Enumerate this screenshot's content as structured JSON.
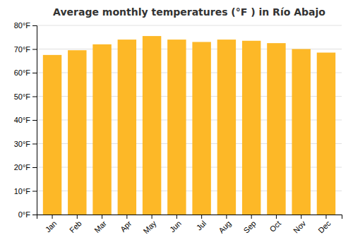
{
  "chart_data": {
    "type": "bar",
    "title": "Average monthly temperatures (°F ) in Río Abajo",
    "categories": [
      "Jan",
      "Feb",
      "Mar",
      "Apr",
      "May",
      "Jun",
      "Jul",
      "Aug",
      "Sep",
      "Oct",
      "Nov",
      "Dec"
    ],
    "values": [
      67.5,
      69.5,
      72.0,
      74.0,
      75.5,
      74.0,
      73.0,
      74.0,
      73.5,
      72.5,
      70.0,
      68.5
    ],
    "color": "#FDB827",
    "ylim": [
      0,
      80
    ],
    "yticks": [
      {
        "value": 0,
        "label": "0°F"
      },
      {
        "value": 10,
        "label": "10°F"
      },
      {
        "value": 20,
        "label": "20°F"
      },
      {
        "value": 30,
        "label": "30°F"
      },
      {
        "value": 40,
        "label": "40°F"
      },
      {
        "value": 50,
        "label": "50°F"
      },
      {
        "value": 60,
        "label": "60°F"
      },
      {
        "value": 70,
        "label": "70°F"
      },
      {
        "value": 80,
        "label": "80°F"
      }
    ],
    "grid": true
  }
}
